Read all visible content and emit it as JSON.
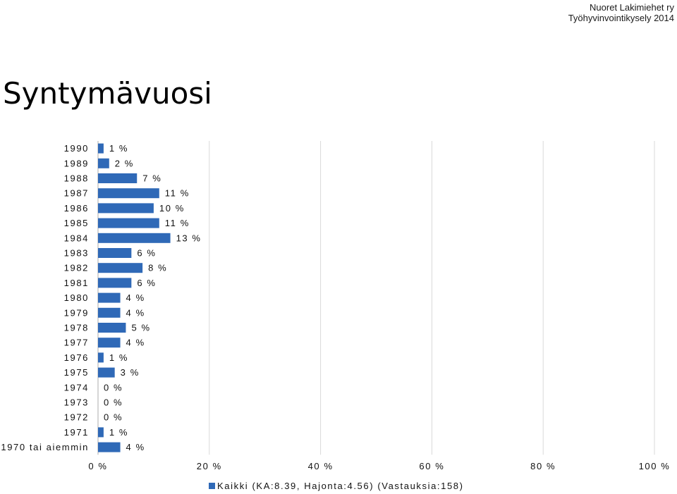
{
  "header": {
    "org": "Nuoret Lakimiehet ry",
    "survey": "Työhyvinvointikysely 2014"
  },
  "page_title": "Syntymävuosi",
  "chart_data": {
    "type": "bar",
    "orientation": "horizontal",
    "title": "Syntymävuosi",
    "categories": [
      "1990",
      "1989",
      "1988",
      "1987",
      "1986",
      "1985",
      "1984",
      "1983",
      "1982",
      "1981",
      "1980",
      "1979",
      "1978",
      "1977",
      "1976",
      "1975",
      "1974",
      "1973",
      "1972",
      "1971",
      "1970 tai aiemmin"
    ],
    "series": [
      {
        "name": "Kaikki (KA:8.39, Hajonta:4.56) (Vastauksia:158)",
        "values": [
          1,
          2,
          7,
          11,
          10,
          11,
          13,
          6,
          8,
          6,
          4,
          4,
          5,
          4,
          1,
          3,
          0,
          0,
          0,
          1,
          4
        ],
        "labels": [
          "1 %",
          "2 %",
          "7 %",
          "11 %",
          "10 %",
          "11 %",
          "13 %",
          "6 %",
          "8 %",
          "6 %",
          "4 %",
          "4 %",
          "5 %",
          "4 %",
          "1 %",
          "3 %",
          "0 %",
          "0 %",
          "0 %",
          "1 %",
          "4 %"
        ]
      }
    ],
    "xlim": [
      0,
      100
    ],
    "xticks": [
      0,
      20,
      40,
      60,
      80,
      100
    ],
    "xtick_labels": [
      "0 %",
      "20 %",
      "40 %",
      "60 %",
      "80 %",
      "100 %"
    ],
    "grid": true,
    "legend": "bottom",
    "bar_color": "#2f69b7",
    "grid_color": "#d9d9d9"
  }
}
